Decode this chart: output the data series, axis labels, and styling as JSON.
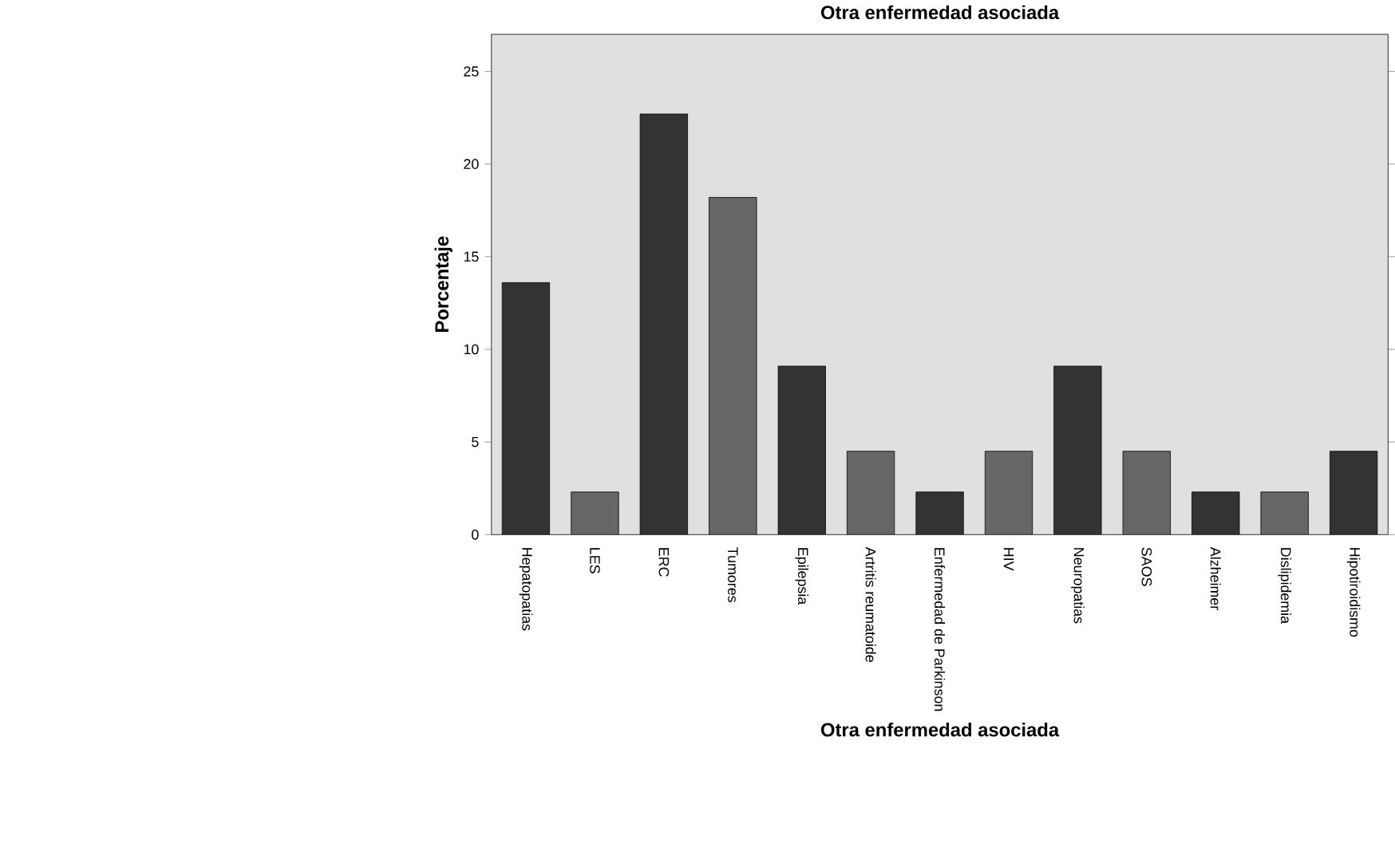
{
  "chart_data": {
    "type": "bar",
    "title": "Otra enfermedad asociada",
    "xlabel": "Otra enfermedad asociada",
    "ylabel": "Porcentaje",
    "categories": [
      "Hepatopatias",
      "LES",
      "ERC",
      "Tumores",
      "Epilepsia",
      "Artritis reumatoide",
      "Enfermedad de Parkinson",
      "HIV",
      "Neuropatias",
      "SAOS",
      "Alzheimer",
      "Dislipidemia",
      "Hipotiroidismo"
    ],
    "values": [
      13.6,
      2.3,
      22.7,
      18.2,
      9.1,
      4.5,
      2.3,
      4.5,
      9.1,
      4.5,
      2.3,
      2.3,
      4.5
    ],
    "colors": [
      "#333333",
      "#666666",
      "#333333",
      "#666666",
      "#333333",
      "#666666",
      "#333333",
      "#666666",
      "#333333",
      "#666666",
      "#333333",
      "#666666",
      "#333333"
    ],
    "ylim": [
      0,
      27
    ],
    "yticks": [
      0,
      5,
      10,
      15,
      20,
      25
    ],
    "grid": false
  }
}
